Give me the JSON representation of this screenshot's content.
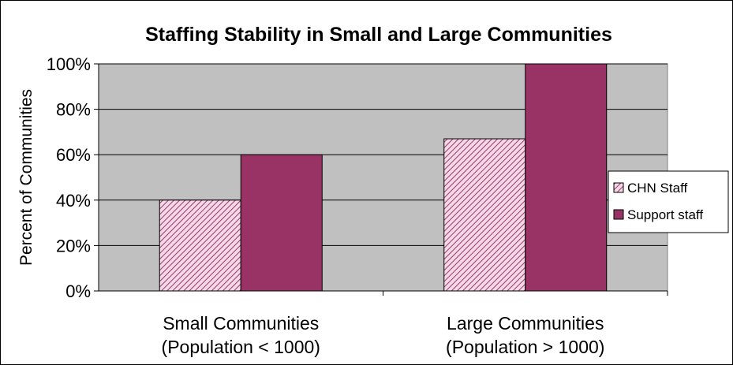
{
  "chart_data": {
    "type": "bar",
    "title": "Staffing Stability in Small and Large Communities",
    "ylabel": "Percent of Communities",
    "xlabel": "",
    "categories": [
      [
        "Small Communities",
        "(Population < 1000)"
      ],
      [
        "Large Communities",
        "(Population > 1000)"
      ]
    ],
    "ylim": [
      0,
      100
    ],
    "yticks": [
      0,
      20,
      40,
      60,
      80,
      100
    ],
    "ytick_labels": [
      "0%",
      "20%",
      "40%",
      "60%",
      "80%",
      "100%"
    ],
    "grid": true,
    "legend_position": "right",
    "plot_background": "#c0c0c0",
    "series": [
      {
        "name": "CHN Staff",
        "values": [
          40,
          67
        ],
        "color": "#e8a0c8",
        "pattern": "diagonal-hatch"
      },
      {
        "name": "Support staff",
        "values": [
          60,
          100
        ],
        "color": "#993366",
        "pattern": "solid"
      }
    ]
  }
}
